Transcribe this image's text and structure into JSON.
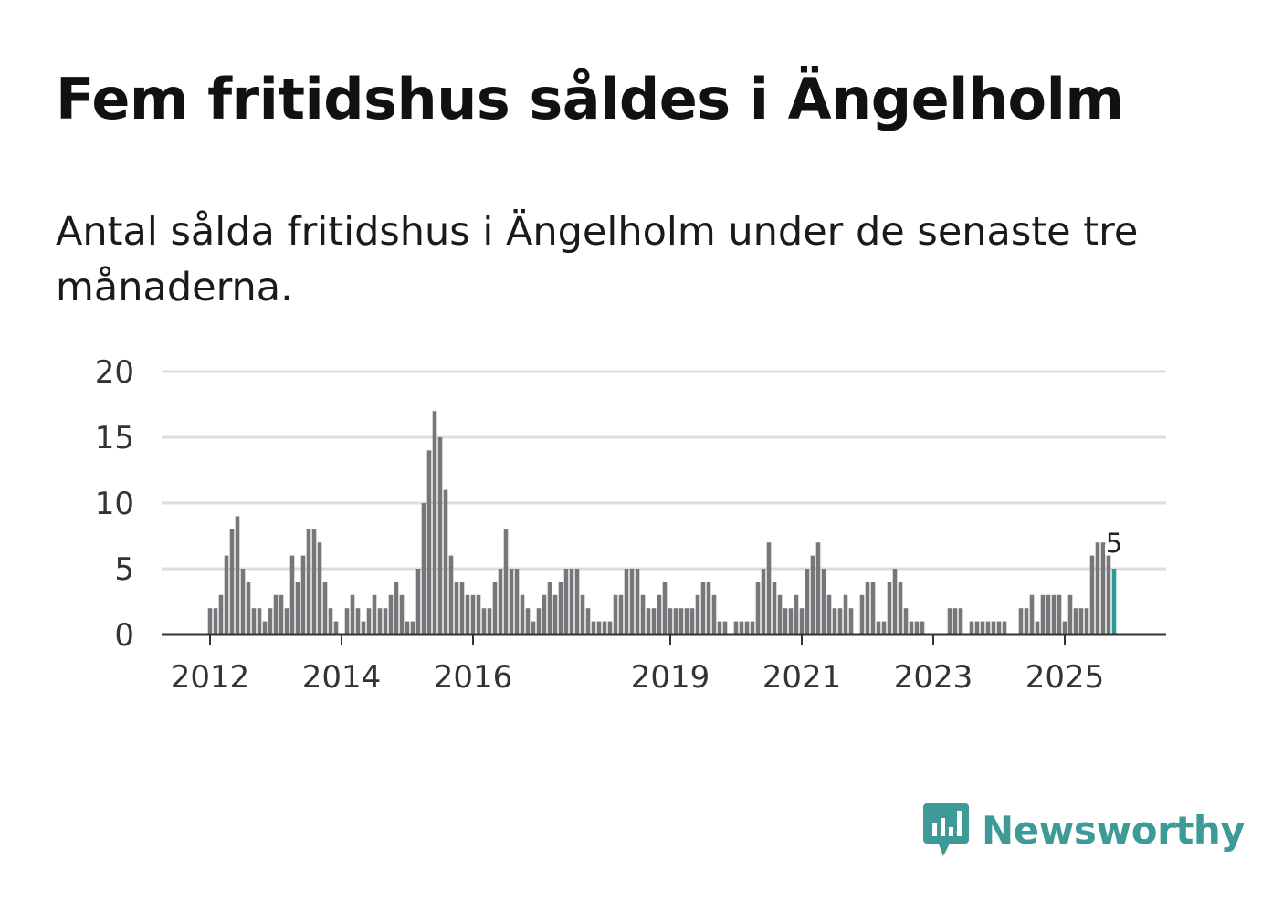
{
  "title": "Fem fritidshus såldes i Ängelholm",
  "subtitle": "Antal sålda fritidshus i Ängelholm under de senaste tre månaderna.",
  "brand": {
    "name": "Newsworthy",
    "color": "#3d9a97"
  },
  "chart_data": {
    "type": "bar",
    "title": "Fem fritidshus såldes i Ängelholm",
    "xlabel": "",
    "ylabel": "",
    "ylim": [
      0,
      20
    ],
    "y_ticks": [
      0,
      5,
      10,
      15,
      20
    ],
    "grid": true,
    "start": "2012-01",
    "x_ticks": [
      {
        "label": "2012",
        "index": 0
      },
      {
        "label": "2014",
        "index": 24
      },
      {
        "label": "2016",
        "index": 48
      },
      {
        "label": "2019",
        "index": 84
      },
      {
        "label": "2021",
        "index": 108
      },
      {
        "label": "2023",
        "index": 132
      },
      {
        "label": "2025",
        "index": 156
      }
    ],
    "colors": {
      "bar": "#77777b",
      "highlight": "#2a9d99",
      "grid": "#dddddd",
      "axis": "#333333"
    },
    "values": [
      2,
      2,
      3,
      6,
      8,
      9,
      5,
      4,
      2,
      2,
      1,
      2,
      3,
      3,
      2,
      6,
      4,
      6,
      8,
      8,
      7,
      4,
      2,
      1,
      0,
      2,
      3,
      2,
      1,
      2,
      3,
      2,
      2,
      3,
      4,
      3,
      1,
      1,
      5,
      10,
      14,
      17,
      15,
      11,
      6,
      4,
      4,
      3,
      3,
      3,
      2,
      2,
      4,
      5,
      8,
      5,
      5,
      3,
      2,
      1,
      2,
      3,
      4,
      3,
      4,
      5,
      5,
      5,
      3,
      2,
      1,
      1,
      1,
      1,
      3,
      3,
      5,
      5,
      5,
      3,
      2,
      2,
      3,
      4,
      2,
      2,
      2,
      2,
      2,
      3,
      4,
      4,
      3,
      1,
      1,
      0,
      1,
      1,
      1,
      1,
      4,
      5,
      7,
      4,
      3,
      2,
      2,
      3,
      2,
      5,
      6,
      7,
      5,
      3,
      2,
      2,
      3,
      2,
      0,
      3,
      4,
      4,
      1,
      1,
      4,
      5,
      4,
      2,
      1,
      1,
      1,
      0,
      0,
      0,
      0,
      2,
      2,
      2,
      0,
      1,
      1,
      1,
      1,
      1,
      1,
      1,
      0,
      0,
      2,
      2,
      3,
      1,
      3,
      3,
      3,
      3,
      1,
      3,
      2,
      2,
      2,
      6,
      7,
      7,
      6,
      5
    ],
    "highlight": {
      "index": 165,
      "value": 5,
      "label": "5"
    }
  }
}
